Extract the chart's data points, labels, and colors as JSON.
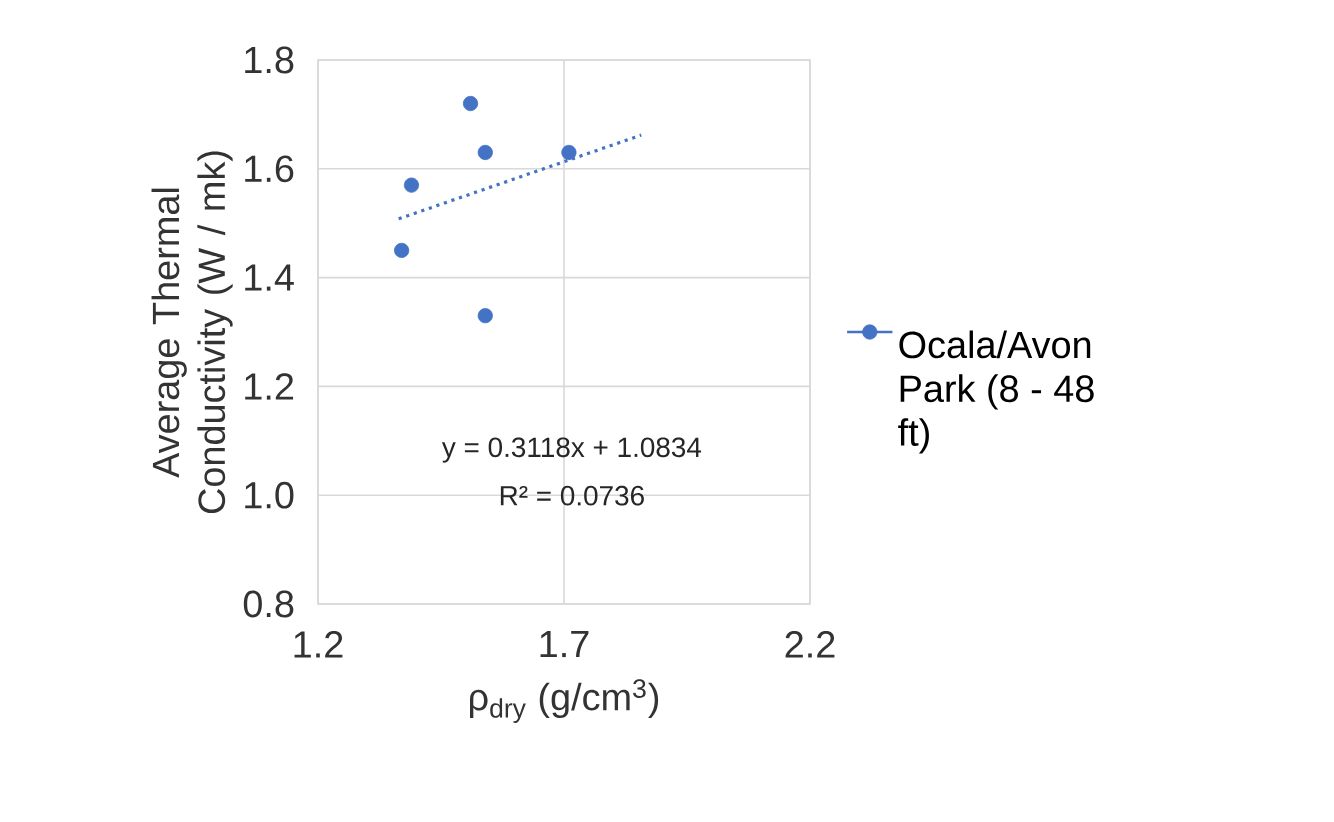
{
  "chart_data": {
    "type": "scatter",
    "xlabel": "ρ$_{dry}$ (g/cm$^{3}$)",
    "ylabel": "Average Thermal Conductivity (W / mk)",
    "series": [
      {
        "name": "Ocala/Avon Park (8 - 48 ft)",
        "color": "#4472c4",
        "x": [
          1.51,
          1.54,
          1.71,
          1.39,
          1.37,
          1.54
        ],
        "values": [
          1.72,
          1.63,
          1.63,
          1.57,
          1.45,
          1.33
        ],
        "marker": "circle"
      },
      {
        "type": "line",
        "color": "#4472c4",
        "x": [
          1.364,
          1.857
        ],
        "values": [
          1.508,
          1.662
        ],
        "line_style": "dotted",
        "marker": "none"
      }
    ],
    "annotations": [
      "y = 0.3118x + 1.0834",
      "R² = 0.0736"
    ],
    "xlim": [
      1.2,
      2.2
    ],
    "xticks": [
      1.2,
      1.7,
      2.2
    ],
    "ylim": [
      0.8,
      1.8
    ],
    "yticks": [
      0.8,
      {
        "value": 1.0,
        "label": "1.0"
      },
      1.2,
      1.4,
      1.6,
      1.8
    ],
    "grid": true,
    "legend": "right"
  }
}
